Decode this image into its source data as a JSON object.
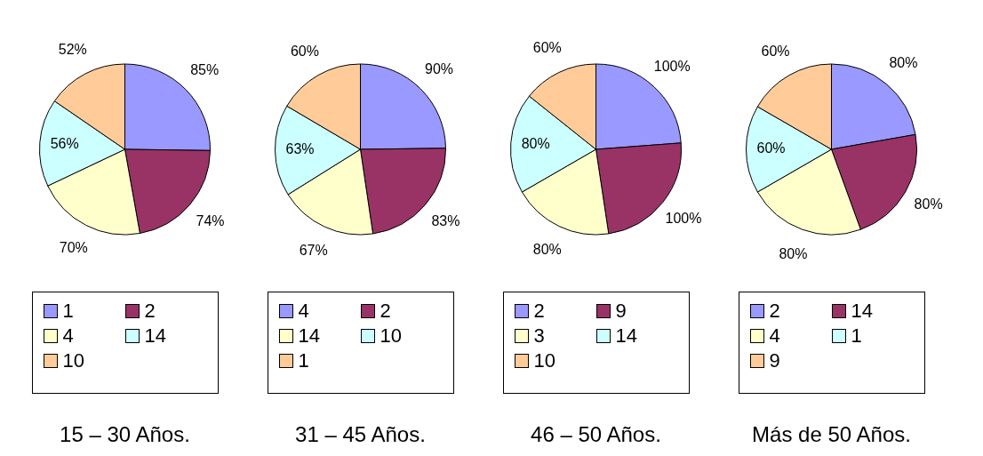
{
  "chart_data": [
    {
      "type": "pie",
      "title": "15 – 30 Años.",
      "categories": [
        "1",
        "2",
        "4",
        "14",
        "10"
      ],
      "values": [
        85,
        74,
        70,
        56,
        52
      ],
      "value_labels": [
        "85%",
        "74%",
        "70%",
        "56%",
        "52%"
      ],
      "colors": [
        "#9999ff",
        "#993366",
        "#ffffcc",
        "#ccffff",
        "#ffcc99"
      ],
      "legend": "bottom"
    },
    {
      "type": "pie",
      "title": "31 – 45 Años.",
      "categories": [
        "4",
        "2",
        "14",
        "10",
        "1"
      ],
      "values": [
        90,
        83,
        67,
        63,
        60
      ],
      "value_labels": [
        "90%",
        "83%",
        "67%",
        "63%",
        "60%"
      ],
      "colors": [
        "#9999ff",
        "#993366",
        "#ffffcc",
        "#ccffff",
        "#ffcc99"
      ],
      "legend": "bottom"
    },
    {
      "type": "pie",
      "title": "46 – 50 Años.",
      "categories": [
        "2",
        "9",
        "3",
        "14",
        "10"
      ],
      "values": [
        100,
        100,
        80,
        80,
        60
      ],
      "value_labels": [
        "100%",
        "100%",
        "80%",
        "80%",
        "60%"
      ],
      "colors": [
        "#9999ff",
        "#993366",
        "#ffffcc",
        "#ccffff",
        "#ffcc99"
      ],
      "legend": "bottom"
    },
    {
      "type": "pie",
      "title": "Más de 50 Años.",
      "categories": [
        "2",
        "14",
        "4",
        "1",
        "9"
      ],
      "values": [
        80,
        80,
        80,
        60,
        60
      ],
      "value_labels": [
        "80%",
        "80%",
        "80%",
        "60%",
        "60%"
      ],
      "colors": [
        "#9999ff",
        "#993366",
        "#ffffcc",
        "#ccffff",
        "#ffcc99"
      ],
      "legend": "bottom"
    }
  ]
}
